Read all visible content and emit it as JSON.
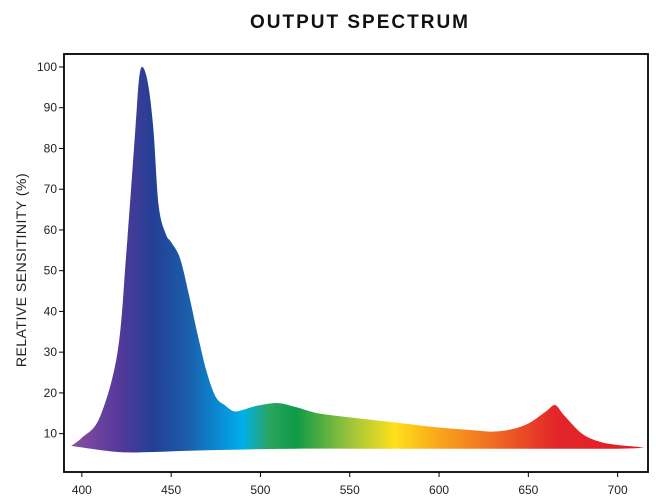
{
  "chart_data": {
    "type": "area",
    "title": "OUTPUT SPECTRUM",
    "xlabel": "",
    "ylabel": "RELATIVE SENSITINITY (%)",
    "xlim": [
      390,
      717
    ],
    "ylim": [
      5,
      100
    ],
    "x_ticks": [
      400,
      450,
      500,
      550,
      600,
      650,
      700
    ],
    "y_ticks": [
      10,
      20,
      30,
      40,
      50,
      60,
      70,
      80,
      90,
      100
    ],
    "grid": false,
    "upper": {
      "x": [
        394,
        400,
        410,
        420,
        425,
        430,
        432,
        434,
        437,
        440,
        443,
        447,
        450,
        455,
        460,
        465,
        470,
        475,
        480,
        485,
        490,
        495,
        500,
        510,
        520,
        530,
        540,
        550,
        560,
        580,
        600,
        620,
        630,
        640,
        650,
        660,
        665,
        670,
        680,
        690,
        700,
        710,
        715
      ],
      "y": [
        7,
        9,
        14,
        30,
        55,
        85,
        97,
        100,
        96,
        85,
        66,
        59,
        57,
        53,
        44,
        34,
        25,
        19,
        17,
        15.5,
        15.8,
        16.5,
        17,
        17.5,
        16.5,
        15.2,
        14.5,
        14,
        13.5,
        12.5,
        11.5,
        10.8,
        10.5,
        11,
        12.5,
        15.5,
        17,
        14.5,
        10,
        8,
        7.2,
        6.8,
        6.5
      ]
    },
    "lower": {
      "x": [
        394,
        420,
        440,
        460,
        480,
        500,
        520,
        550,
        600,
        650,
        680,
        700,
        715
      ],
      "y": [
        7,
        5.5,
        5.5,
        5.8,
        6,
        6.2,
        6.3,
        6.3,
        6.3,
        6.3,
        6.3,
        6.3,
        6.5
      ]
    },
    "gradient_stops": [
      {
        "wavelength": 394,
        "color": "#8a4fa3"
      },
      {
        "wavelength": 420,
        "color": "#56399a"
      },
      {
        "wavelength": 440,
        "color": "#233f95"
      },
      {
        "wavelength": 460,
        "color": "#1a5fac"
      },
      {
        "wavelength": 475,
        "color": "#0a87cf"
      },
      {
        "wavelength": 490,
        "color": "#00aeea"
      },
      {
        "wavelength": 505,
        "color": "#2aa55f"
      },
      {
        "wavelength": 520,
        "color": "#0e9a48"
      },
      {
        "wavelength": 550,
        "color": "#9bc43c"
      },
      {
        "wavelength": 575,
        "color": "#ffe01b"
      },
      {
        "wavelength": 600,
        "color": "#f9a61a"
      },
      {
        "wavelength": 630,
        "color": "#f06c22"
      },
      {
        "wavelength": 665,
        "color": "#e3262a"
      },
      {
        "wavelength": 715,
        "color": "#e31b23"
      }
    ],
    "frame_color": "#000000"
  }
}
